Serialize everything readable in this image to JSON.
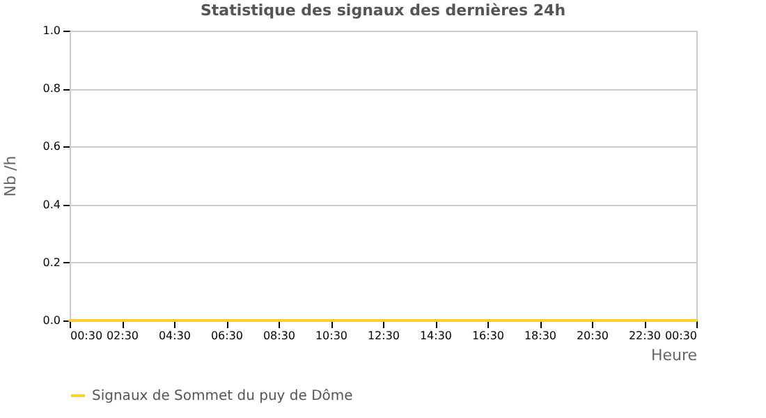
{
  "chart_data": {
    "type": "line",
    "title": "Statistique des signaux des dernières 24h",
    "xlabel": "Heure",
    "ylabel": "Nb /h",
    "x": [
      "--01-01T00:30",
      "--01-01T01:30",
      "--01-01T02:30",
      "--01-01T03:30",
      "--01-01T04:30",
      "--01-01T05:30",
      "--01-01T06:30",
      "--01-01T07:30",
      "--01-01T08:30",
      "--01-01T09:30",
      "--01-01T10:30",
      "--01-01T11:30",
      "--01-01T12:30",
      "--01-01T13:30",
      "--01-01T14:30",
      "--01-01T15:30",
      "--01-01T16:30",
      "--01-01T17:30",
      "--01-01T18:30",
      "--01-01T19:30",
      "--01-01T20:30",
      "--01-01T21:30",
      "--01-01T22:30",
      "--01-01T23:30",
      "--01-02T00:30"
    ],
    "series": [
      {
        "name": "Signaux de Sommet du puy de Dôme",
        "color": "#ffcc33",
        "values": [
          0,
          0,
          0,
          0,
          0,
          0,
          0,
          0,
          0,
          0,
          0,
          0,
          0,
          0,
          0,
          0,
          0,
          0,
          0,
          0,
          0,
          0,
          0,
          0,
          0
        ]
      }
    ],
    "xlim": [
      "--01-01T00:30",
      "--01-02T00:30"
    ],
    "xticks": [
      {
        "value": "--01-01T00:30",
        "label": "00:30"
      },
      {
        "value": "--01-01T02:30",
        "label": "02:30"
      },
      {
        "value": "--01-01T04:30",
        "label": "04:30"
      },
      {
        "value": "--01-01T06:30",
        "label": "06:30"
      },
      {
        "value": "--01-01T08:30",
        "label": "08:30"
      },
      {
        "value": "--01-01T10:30",
        "label": "10:30"
      },
      {
        "value": "--01-01T12:30",
        "label": "12:30"
      },
      {
        "value": "--01-01T14:30",
        "label": "14:30"
      },
      {
        "value": "--01-01T16:30",
        "label": "16:30"
      },
      {
        "value": "--01-01T18:30",
        "label": "18:30"
      },
      {
        "value": "--01-01T20:30",
        "label": "20:30"
      },
      {
        "value": "--01-01T22:30",
        "label": "22:30"
      },
      {
        "value": "--01-02T00:30",
        "label": "00:30"
      }
    ],
    "ylim": [
      0,
      1
    ],
    "yticks": [
      {
        "value": 0,
        "label": "0.0"
      },
      {
        "value": 0.2,
        "label": "0.2"
      },
      {
        "value": 0.4,
        "label": "0.4"
      },
      {
        "value": 0.6,
        "label": "0.6"
      },
      {
        "value": 0.8,
        "label": "0.8"
      },
      {
        "value": 1,
        "label": "1.0"
      }
    ],
    "grid": "y",
    "legend": "bottom",
    "marker": "none",
    "line_style": "solid"
  }
}
